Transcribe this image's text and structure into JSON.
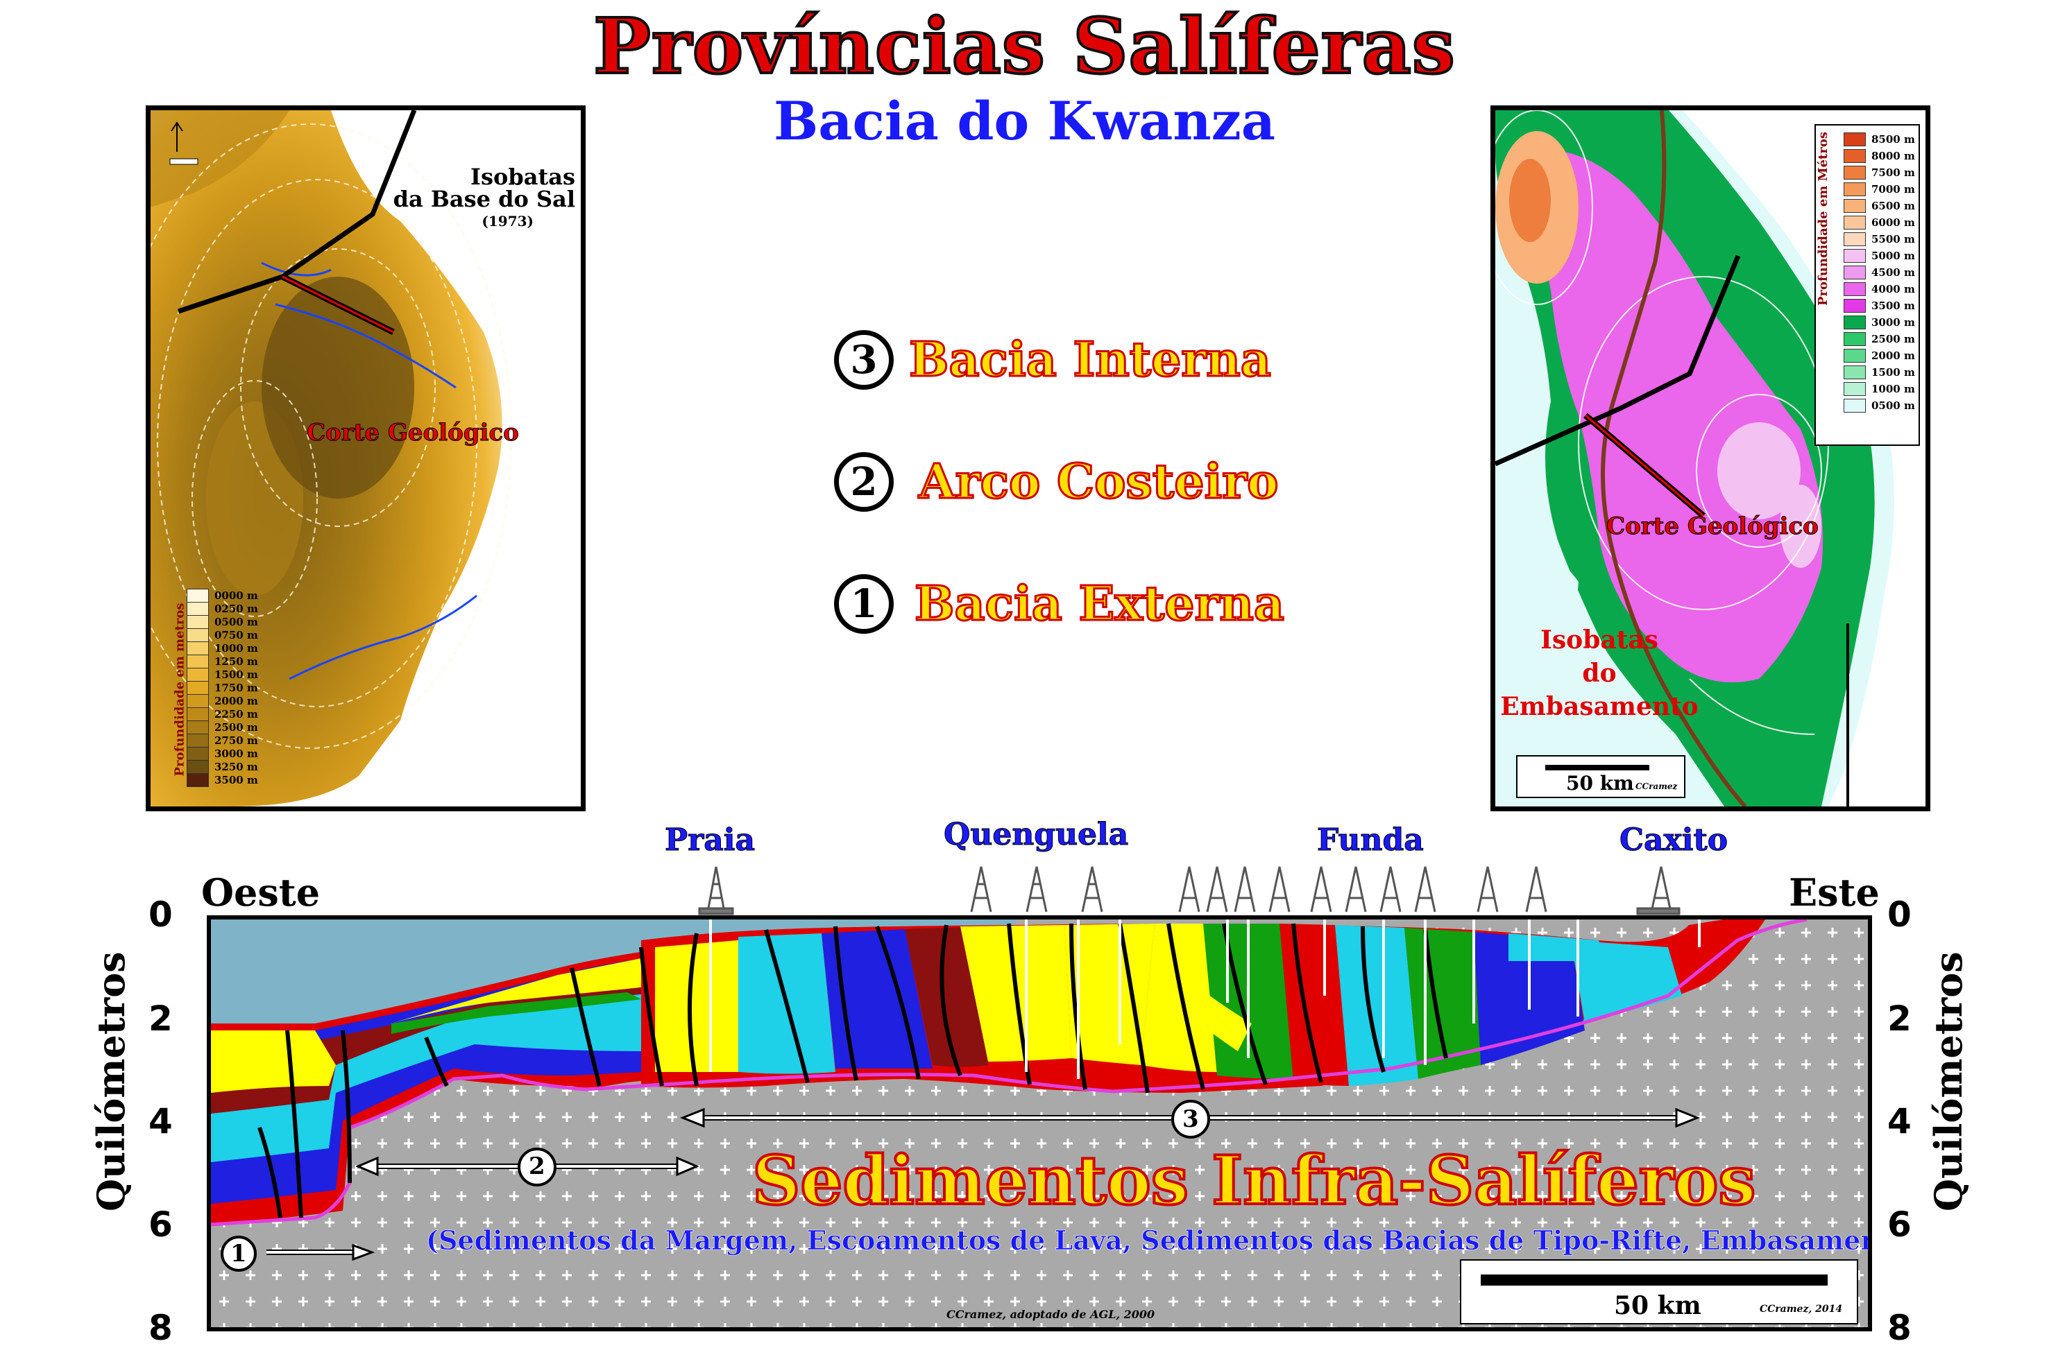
{
  "title": "Províncias Salíferas",
  "subtitle": "Bacia do Kwanza",
  "left_map": {
    "caption_line1": "Isobatas",
    "caption_line2": "da Base do Sal",
    "caption_line3": "(1973)",
    "section_label": "Corte Geológico",
    "legend_title": "Profundidade em metros",
    "legend": [
      {
        "label": "0000 m",
        "color": "#fff8e0"
      },
      {
        "label": "0250 m",
        "color": "#fdefc2"
      },
      {
        "label": "0500 m",
        "color": "#fbe6a6"
      },
      {
        "label": "0750 m",
        "color": "#f8dc88"
      },
      {
        "label": "1000 m",
        "color": "#f5d06a"
      },
      {
        "label": "1250 m",
        "color": "#f2c34e"
      },
      {
        "label": "1500 m",
        "color": "#edb636"
      },
      {
        "label": "1750 m",
        "color": "#e4a924"
      },
      {
        "label": "2000 m",
        "color": "#d29a1c"
      },
      {
        "label": "2250 m",
        "color": "#bd8a18"
      },
      {
        "label": "2500 m",
        "color": "#a87c16"
      },
      {
        "label": "2750 m",
        "color": "#946e14"
      },
      {
        "label": "3000 m",
        "color": "#806014"
      },
      {
        "label": "3250 m",
        "color": "#6b4f12"
      },
      {
        "label": "3500 m",
        "color": "#55200c"
      }
    ]
  },
  "right_map": {
    "legend_title": "Profundidade em Métros",
    "legend": [
      {
        "label": "8500 m",
        "color": "#d8401a"
      },
      {
        "label": "8000 m",
        "color": "#e4602a"
      },
      {
        "label": "7500 m",
        "color": "#ee7e3e"
      },
      {
        "label": "7000 m",
        "color": "#f49a5a"
      },
      {
        "label": "6500 m",
        "color": "#f8b27a"
      },
      {
        "label": "6000 m",
        "color": "#fac79c"
      },
      {
        "label": "5500 m",
        "color": "#fcd8bc"
      },
      {
        "label": "5000 m",
        "color": "#f4c2f2"
      },
      {
        "label": "4500 m",
        "color": "#ee9aee"
      },
      {
        "label": "4000 m",
        "color": "#ea66ea"
      },
      {
        "label": "3500 m",
        "color": "#e23ae6"
      },
      {
        "label": "3000 m",
        "color": "#0aa84c"
      },
      {
        "label": "2500 m",
        "color": "#2ec86a"
      },
      {
        "label": "2000 m",
        "color": "#5cd88c"
      },
      {
        "label": "1500 m",
        "color": "#8ae6ae"
      },
      {
        "label": "1000 m",
        "color": "#b8f2d4"
      },
      {
        "label": "0500 m",
        "color": "#e0fafa"
      }
    ],
    "section_label": "Corte Geológico",
    "caption_line1": "Isobatas",
    "caption_line2": "do",
    "caption_line3": "Embasamento",
    "scale": "50 km",
    "credit": "CCramez"
  },
  "zones": [
    {
      "num": "3",
      "label": "Bacia Interna"
    },
    {
      "num": "2",
      "label": "Arco Costeiro"
    },
    {
      "num": "1",
      "label": "Bacia Externa"
    }
  ],
  "section": {
    "west": "Oeste",
    "east": "Este",
    "axis_title": "Quilómetros",
    "ticks": [
      "0",
      "2",
      "4",
      "6",
      "8"
    ],
    "wells": [
      "Praia",
      "Quenguela",
      "Funda",
      "Caxito"
    ],
    "main_label": "Sedimentos Infra-Salíferos",
    "sub_label": "(Sedimentos da Margem, Escoamentos de Lava, Sedimentos das Bacias de Tipo-Rifte, Embasamento)",
    "credit_left": "CCramez, adoptado de AGL, 2000",
    "scale": "50 km",
    "credit_right": "CCramez, 2014",
    "arrow_nums": [
      "1",
      "2",
      "3"
    ]
  },
  "colors": {
    "accent_red": "#e00000",
    "accent_blue": "#1a1aff",
    "label_yellow": "#ffe000",
    "basement": "#a9a9a9"
  }
}
